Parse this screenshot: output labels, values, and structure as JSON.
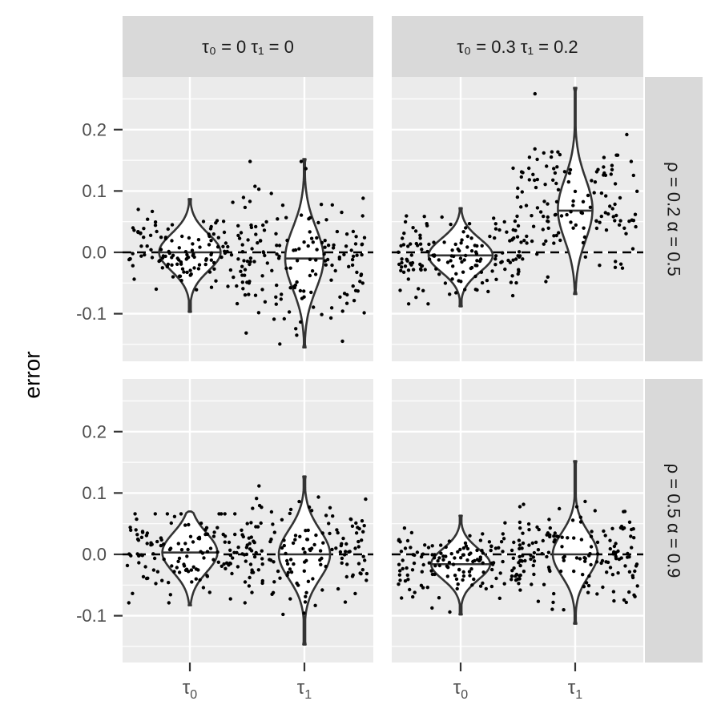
{
  "chart_data": {
    "type": "violin",
    "ylabel": "error",
    "xlabel": "",
    "ylim": [
      -0.16,
      0.28
    ],
    "y_ticks": [
      -0.1,
      0.0,
      0.1,
      0.2
    ],
    "y_tick_labels": [
      "-0.1",
      "0.0",
      "0.1",
      "0.2"
    ],
    "reference_line": {
      "y": 0,
      "style": "dashed"
    },
    "categories": [
      {
        "id": "tau0",
        "base": "τ",
        "sub": "0"
      },
      {
        "id": "tau1",
        "base": "τ",
        "sub": "1"
      }
    ],
    "col_facets": [
      {
        "label": "τ₀ = 0  τ₁ = 0"
      },
      {
        "label": "τ₀ = 0.3  τ₁ = 0.2"
      }
    ],
    "row_facets": [
      {
        "label": "ρ = 0.2  α = 0.5"
      },
      {
        "label": "ρ = 0.5  α = 0.9"
      }
    ],
    "panels": [
      {
        "row": 0,
        "col": 0,
        "violins": [
          {
            "category": "tau0",
            "min": -0.097,
            "max": 0.087,
            "median": 0.0,
            "mode": 0.0,
            "sd": 0.03,
            "halfwidth": 0.48,
            "points": 140
          },
          {
            "category": "tau1",
            "min": -0.155,
            "max": 0.152,
            "median": -0.01,
            "mode": -0.01,
            "sd": 0.05,
            "halfwidth": 0.3,
            "points": 150
          }
        ]
      },
      {
        "row": 0,
        "col": 1,
        "violins": [
          {
            "category": "tau0",
            "min": -0.088,
            "max": 0.072,
            "median": -0.005,
            "mode": -0.005,
            "sd": 0.027,
            "halfwidth": 0.5,
            "points": 150
          },
          {
            "category": "tau1",
            "min": -0.068,
            "max": 0.268,
            "median": 0.068,
            "mode": 0.07,
            "sd": 0.05,
            "halfwidth": 0.27,
            "points": 140
          }
        ]
      },
      {
        "row": 1,
        "col": 0,
        "violins": [
          {
            "category": "tau0",
            "min": -0.083,
            "max": 0.07,
            "median": 0.003,
            "mode": 0.003,
            "sd": 0.032,
            "halfwidth": 0.43,
            "points": 140
          },
          {
            "category": "tau1",
            "min": -0.147,
            "max": 0.127,
            "median": 0.0,
            "mode": 0.0,
            "sd": 0.04,
            "halfwidth": 0.4,
            "points": 150
          }
        ]
      },
      {
        "row": 1,
        "col": 1,
        "violins": [
          {
            "category": "tau0",
            "min": -0.098,
            "max": 0.063,
            "median": -0.016,
            "mode": -0.016,
            "sd": 0.025,
            "halfwidth": 0.46,
            "points": 150
          },
          {
            "category": "tau1",
            "min": -0.113,
            "max": 0.152,
            "median": 0.0,
            "mode": 0.0,
            "sd": 0.035,
            "halfwidth": 0.35,
            "points": 150
          }
        ]
      }
    ],
    "colors": {
      "panel_bg": "#ebebeb",
      "grid_major": "#ffffff",
      "strip_bg": "#d9d9d9",
      "violin_stroke": "#333333",
      "violin_fill": "#ffffff",
      "point": "#000000",
      "ref_line": "#000000"
    }
  }
}
